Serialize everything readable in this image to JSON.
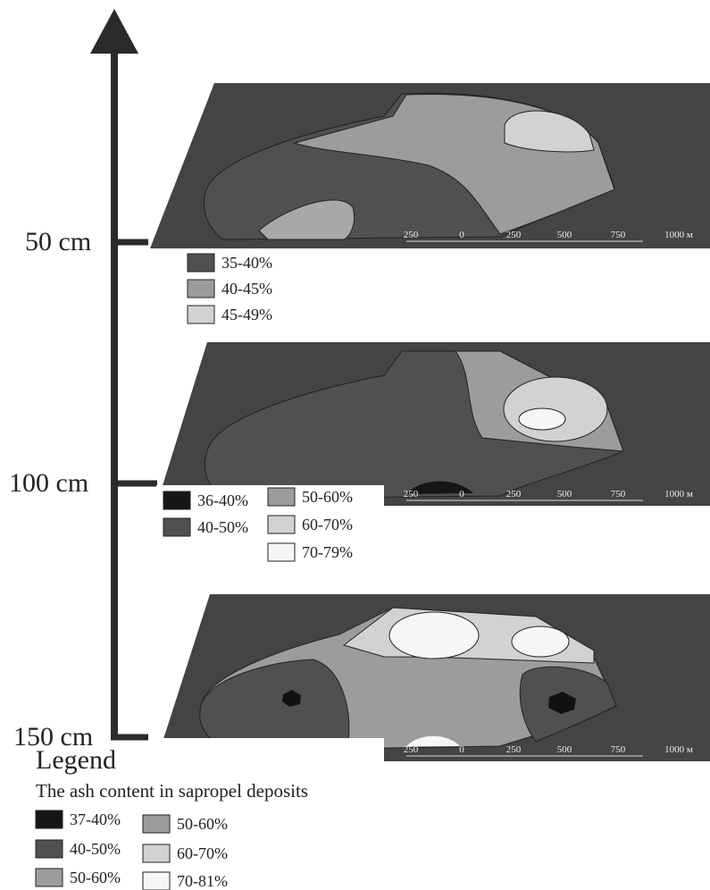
{
  "axis": {
    "depths": [
      "50 cm",
      "100 cm",
      "150 cm"
    ]
  },
  "maps": [
    {
      "legend": [
        {
          "label": "35-40%",
          "color": "#505050"
        },
        {
          "label": "40-45%",
          "color": "#9c9c9c"
        },
        {
          "label": "45-49%",
          "color": "#d2d2d2"
        }
      ],
      "scale": [
        "250",
        "0",
        "250",
        "500",
        "750",
        "1000 м"
      ]
    },
    {
      "legend": [
        {
          "label": "36-40%",
          "color": "#161616"
        },
        {
          "label": "40-50%",
          "color": "#505050"
        },
        {
          "label": "50-60%",
          "color": "#9c9c9c"
        },
        {
          "label": "60-70%",
          "color": "#d2d2d2"
        },
        {
          "label": "70-79%",
          "color": "#f6f6f6"
        }
      ],
      "scale": [
        "250",
        "0",
        "250",
        "500",
        "750",
        "1000 м"
      ]
    },
    {
      "scale": [
        "250",
        "0",
        "250",
        "500",
        "750",
        "1000 м"
      ]
    }
  ],
  "legend": {
    "title": "Legend",
    "subtitle": "The ash content in sapropel deposits",
    "items": [
      {
        "label": "37-40%",
        "color": "#161616"
      },
      {
        "label": "40-50%",
        "color": "#505050"
      },
      {
        "label": "50-60%",
        "color": "#9c9c9c"
      },
      {
        "label": "50-60%",
        "color": "#9c9c9c"
      },
      {
        "label": "60-70%",
        "color": "#d2d2d2"
      },
      {
        "label": "70-81%",
        "color": "#f6f6f6"
      }
    ]
  }
}
